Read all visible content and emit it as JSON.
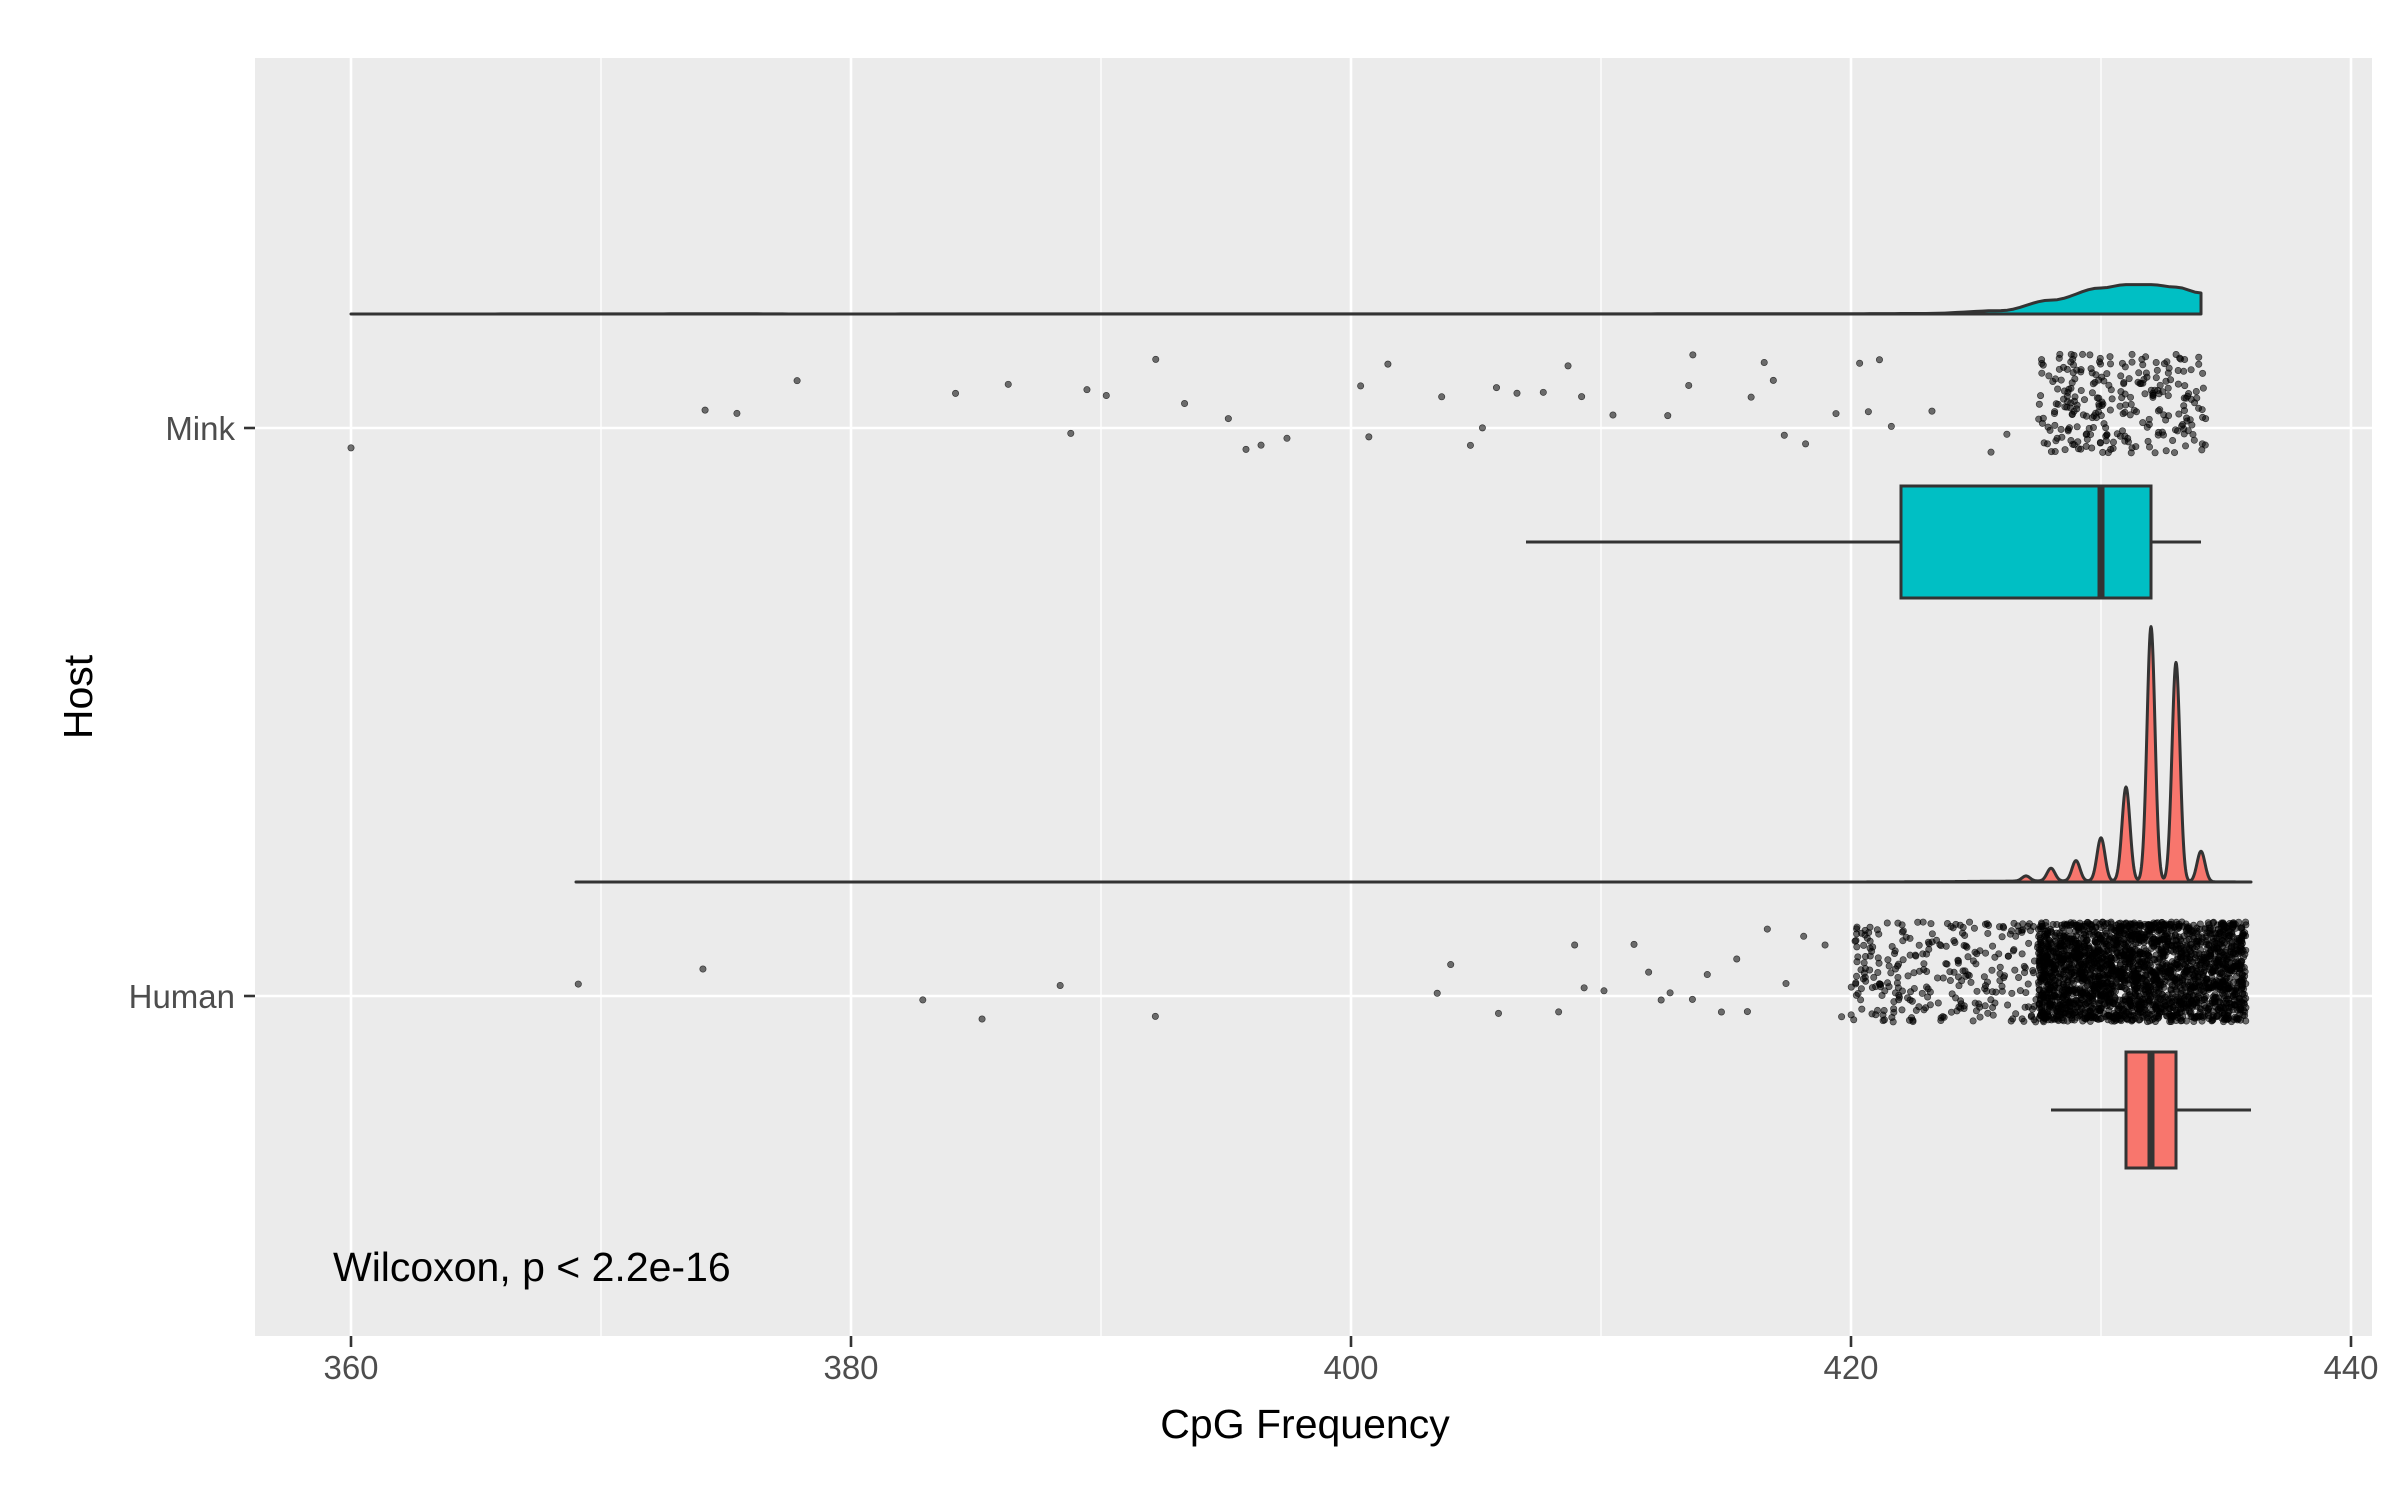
{
  "chart_data": {
    "type": "raincloud",
    "title": "",
    "xlabel": "CpG Frequency",
    "ylabel": "Host",
    "xlim": [
      356.3,
      440.3
    ],
    "x_ticks": [
      360,
      380,
      400,
      420,
      440
    ],
    "grid": true,
    "legend": "none",
    "annotation": "Wilcoxon, p < 2.2e-16",
    "colors": {
      "panel": "#ebebeb",
      "grid": "#ffffff",
      "mink": "#00bfc4",
      "human": "#f8766d",
      "outline": "#333333",
      "points": "#000000"
    },
    "categories": [
      "Human",
      "Mink"
    ],
    "series": [
      {
        "name": "Mink",
        "color": "#00bfc4",
        "box": {
          "min": 407,
          "q1": 422,
          "median": 430,
          "q3": 432,
          "max": 434
        },
        "density_range": [
          360,
          434
        ],
        "density": [
          [
            360,
            0.0
          ],
          [
            376,
            0.004
          ],
          [
            378,
            0.0
          ],
          [
            385,
            0.002
          ],
          [
            400,
            0.002
          ],
          [
            406,
            0.003
          ],
          [
            410,
            0.002
          ],
          [
            414,
            0.005
          ],
          [
            419,
            0.006
          ],
          [
            423,
            0.012
          ],
          [
            426,
            0.08
          ],
          [
            428,
            0.33
          ],
          [
            430,
            0.62
          ],
          [
            431,
            0.7
          ],
          [
            432,
            0.7
          ],
          [
            433,
            0.64
          ],
          [
            434,
            0.5
          ]
        ],
        "outliers": [
          360,
          374.2,
          375.4,
          377.7,
          384.2,
          386.3,
          388.9,
          389.4,
          390.3,
          392.3,
          393.3,
          395.2,
          395.8,
          396.3,
          397.3,
          400.3,
          400.8,
          401.4,
          403.7,
          404.9,
          405.3,
          405.8,
          406.6,
          407.8,
          408.6,
          409.1,
          410.4,
          412.6,
          413.4,
          413.8,
          415.9,
          416.4,
          416.8,
          417.3,
          418.3,
          419.3,
          420.2,
          420.7,
          421.2,
          421.7,
          423.1,
          425.6,
          426.1
        ]
      },
      {
        "name": "Human",
        "color": "#f8766d",
        "box": {
          "min": 428,
          "q1": 431,
          "median": 432,
          "q3": 433,
          "max": 436
        },
        "density_range": [
          369,
          436
        ],
        "density_peaks": [
          {
            "x": 427,
            "h": 0.02
          },
          {
            "x": 428,
            "h": 0.05
          },
          {
            "x": 429,
            "h": 0.08
          },
          {
            "x": 430,
            "h": 0.17
          },
          {
            "x": 431,
            "h": 0.37
          },
          {
            "x": 432,
            "h": 1.0
          },
          {
            "x": 433,
            "h": 0.86
          },
          {
            "x": 434,
            "h": 0.12
          }
        ],
        "outliers": [
          369,
          374,
          382.8,
          385.2,
          388.3,
          392.2,
          403.3,
          404.1,
          406,
          408.2,
          408.8,
          409.3,
          410.1,
          411.2,
          411.9,
          412.4,
          412.9,
          413.6,
          414.2,
          414.8,
          415.3,
          416,
          416.6,
          417.4,
          418.1,
          418.9,
          419.6,
          420.4,
          421.1,
          421.8,
          422.4,
          423.1,
          423.7,
          424.3,
          425,
          425.6,
          426.3,
          427
        ]
      }
    ]
  }
}
